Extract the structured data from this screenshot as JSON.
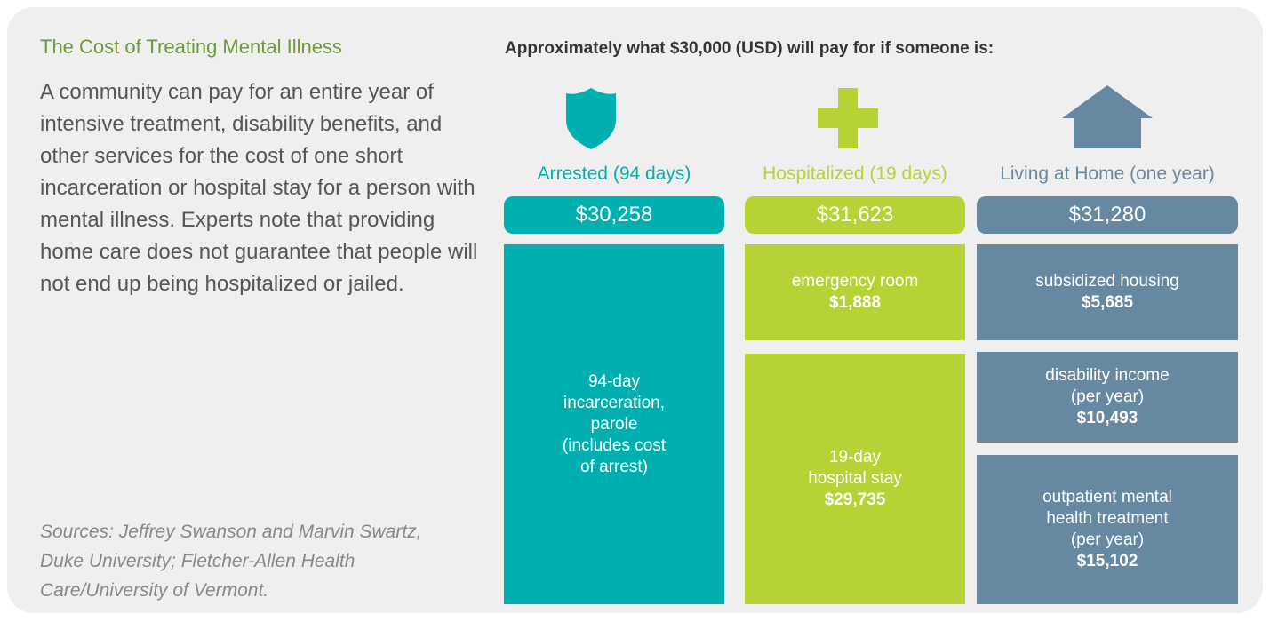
{
  "intro": {
    "title": "The Cost of Treating Mental Illness",
    "body": "A community can pay for an entire year of intensive treatment, disability benefits, and other services for the cost of one short incarceration or hospital stay for a person with mental illness. Experts note that providing home care does not guarantee that people will not end up being hospitalized or jailed.",
    "sources": "Sources: Jeffrey Swanson and Marvin Swartz, Duke University; Fletcher-Allen Health Care/University of Vermont."
  },
  "heading": "Approximately what $30,000 (USD) will pay for if someone is:",
  "columns": [
    {
      "label": "Arrested (94 days)",
      "total": "$30,258",
      "segments": [
        {
          "label": [
            "94-day",
            "incarceration,",
            "parole",
            "(includes cost",
            "of arrest)"
          ]
        }
      ]
    },
    {
      "label": "Hospitalized (19 days)",
      "total": "$31,623",
      "segments": [
        {
          "label": [
            "emergency room"
          ],
          "amount": "$1,888"
        },
        {
          "label": [
            "19-day",
            "hospital stay"
          ],
          "amount": "$29,735"
        }
      ]
    },
    {
      "label": "Living at Home (one year)",
      "total": "$31,280",
      "segments": [
        {
          "label": [
            "subsidized housing"
          ],
          "amount": "$5,685"
        },
        {
          "label": [
            "disability income",
            "(per year)"
          ],
          "amount": "$10,493"
        },
        {
          "label": [
            "outpatient mental",
            "health treatment",
            "(per year)"
          ],
          "amount": "$15,102"
        }
      ]
    }
  ]
}
